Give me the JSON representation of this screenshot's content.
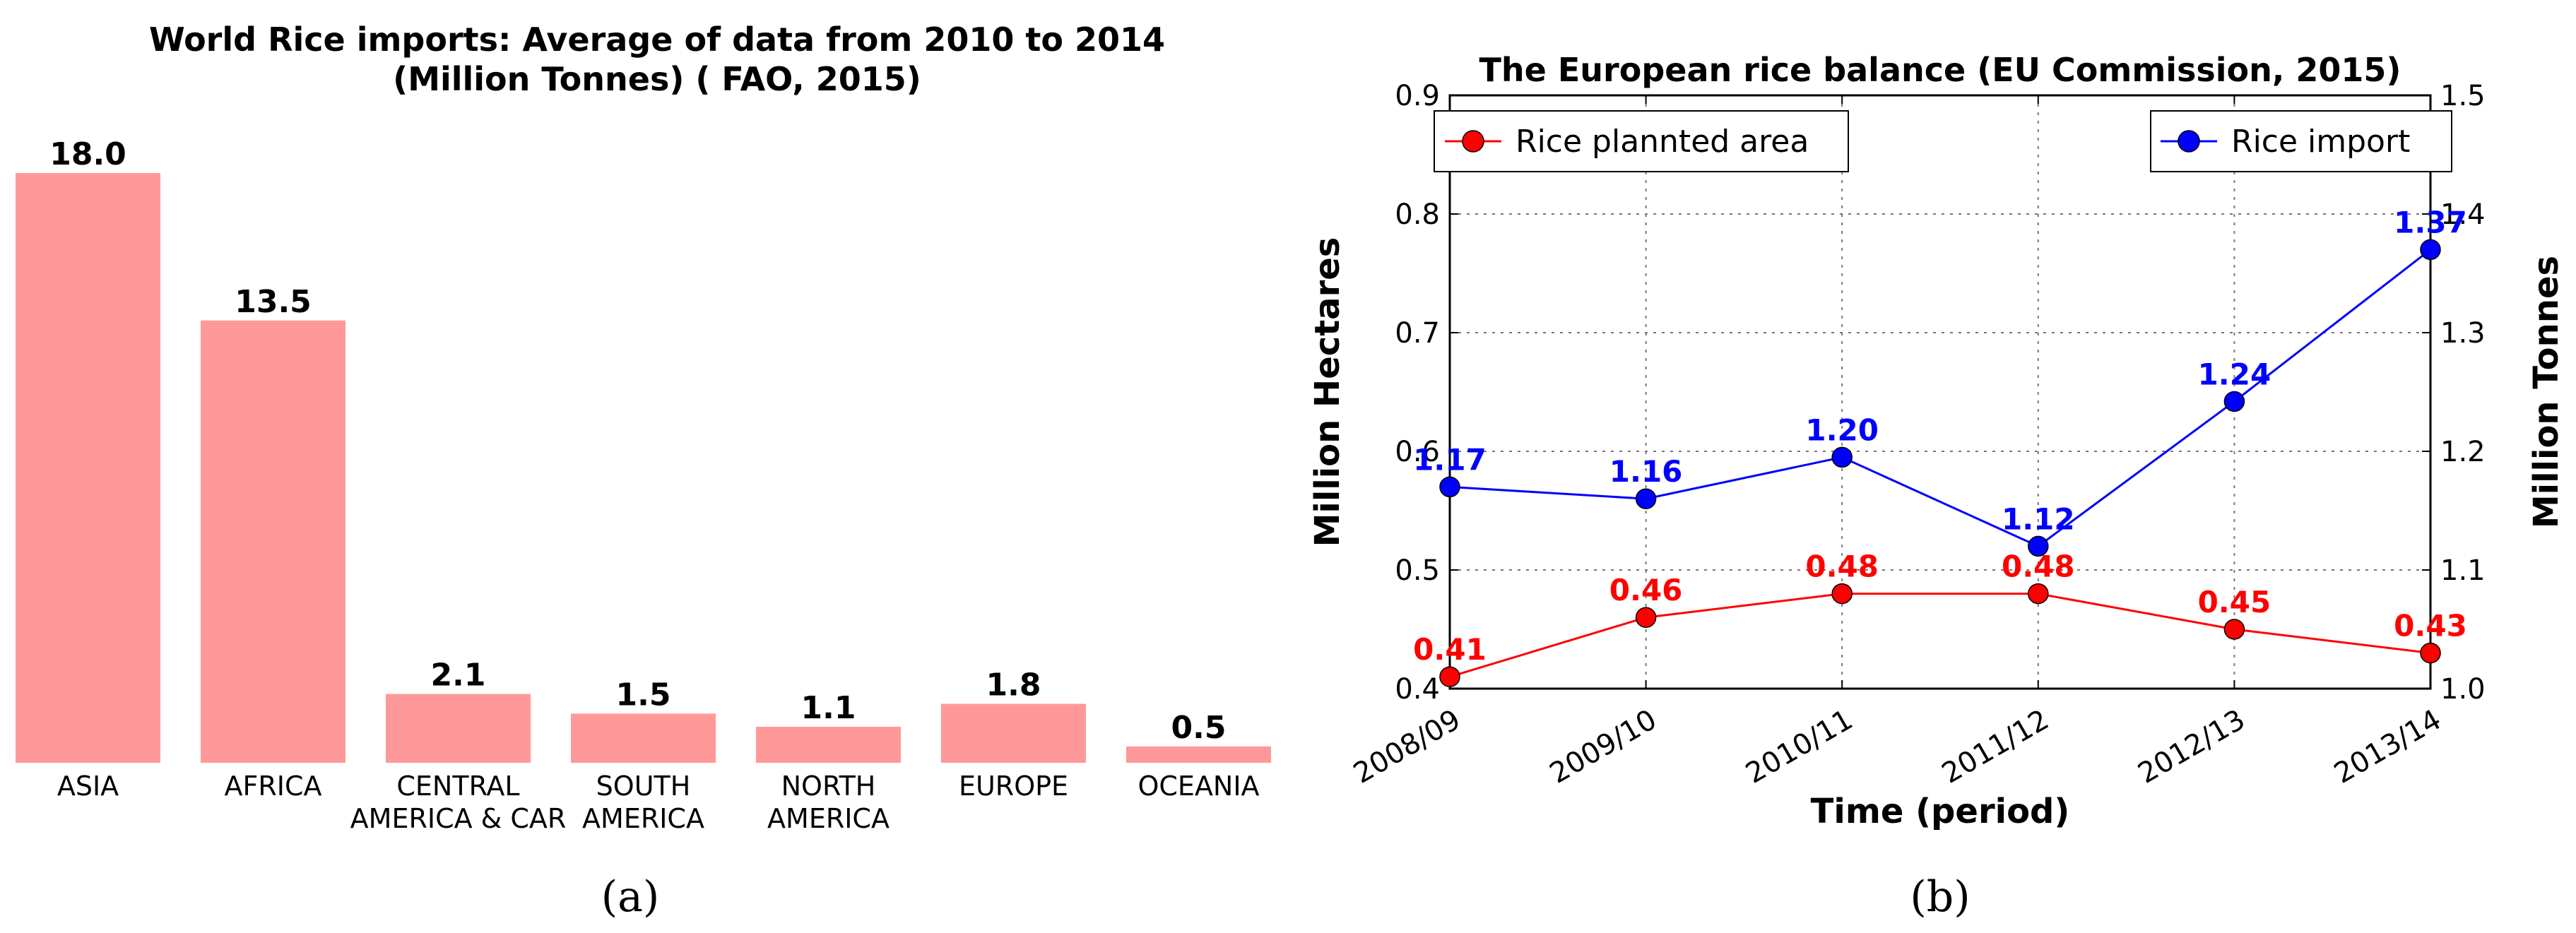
{
  "chart_data": [
    {
      "type": "bar",
      "panel_caption": "(a)",
      "title_line1": "World Rice imports: Average of data from 2010 to 2014",
      "title_line2": "(Million Tonnes) ( FAO, 2015)",
      "categories": [
        {
          "line1": "ASIA",
          "line2": ""
        },
        {
          "line1": "AFRICA",
          "line2": ""
        },
        {
          "line1": "CENTRAL",
          "line2": "AMERICA & CAR"
        },
        {
          "line1": "SOUTH",
          "line2": "AMERICA"
        },
        {
          "line1": "NORTH",
          "line2": "AMERICA"
        },
        {
          "line1": "EUROPE",
          "line2": ""
        },
        {
          "line1": "OCEANIA",
          "line2": ""
        }
      ],
      "values": [
        18.0,
        13.5,
        2.1,
        1.5,
        1.1,
        1.8,
        0.5
      ],
      "value_labels": [
        "18.0",
        "13.5",
        "2.1",
        "1.5",
        "1.1",
        "1.8",
        "0.5"
      ],
      "bar_color": "#ff9999",
      "ylim": [
        0,
        18.0
      ]
    },
    {
      "type": "line",
      "panel_caption": "(b)",
      "title": "The European rice balance (EU Commission, 2015)",
      "xlabel": "Time (period)",
      "ylabel_left": "Million Hectares",
      "ylabel_right": "Million Tonnes",
      "categories": [
        "2008/09",
        "2009/10",
        "2010/11",
        "2011/12",
        "2012/13",
        "2013/14"
      ],
      "left_axis": {
        "ylim": [
          0.4,
          0.9
        ],
        "ticks": [
          "0.4",
          "0.5",
          "0.6",
          "0.7",
          "0.8",
          "0.9"
        ]
      },
      "right_axis": {
        "ylim": [
          1.0,
          1.5
        ],
        "ticks": [
          "1.0",
          "1.1",
          "1.2",
          "1.3",
          "1.4",
          "1.5"
        ]
      },
      "grid": true,
      "series": [
        {
          "name": "Rice plannted area",
          "axis": "left",
          "color": "#ff0000",
          "legend_position": "upper-left",
          "values": [
            0.41,
            0.46,
            0.48,
            0.48,
            0.45,
            0.43
          ],
          "labels": [
            "0.41",
            "0.46",
            "0.48",
            "0.48",
            "0.45",
            "0.43"
          ]
        },
        {
          "name": "Rice import",
          "axis": "right",
          "color": "#0000ff",
          "legend_position": "upper-right",
          "values": [
            1.17,
            1.16,
            1.195,
            1.12,
            1.242,
            1.37
          ],
          "labels": [
            "1.17",
            "1.16",
            "1.20",
            "1.12",
            "1.24",
            "1.37"
          ]
        }
      ]
    }
  ]
}
